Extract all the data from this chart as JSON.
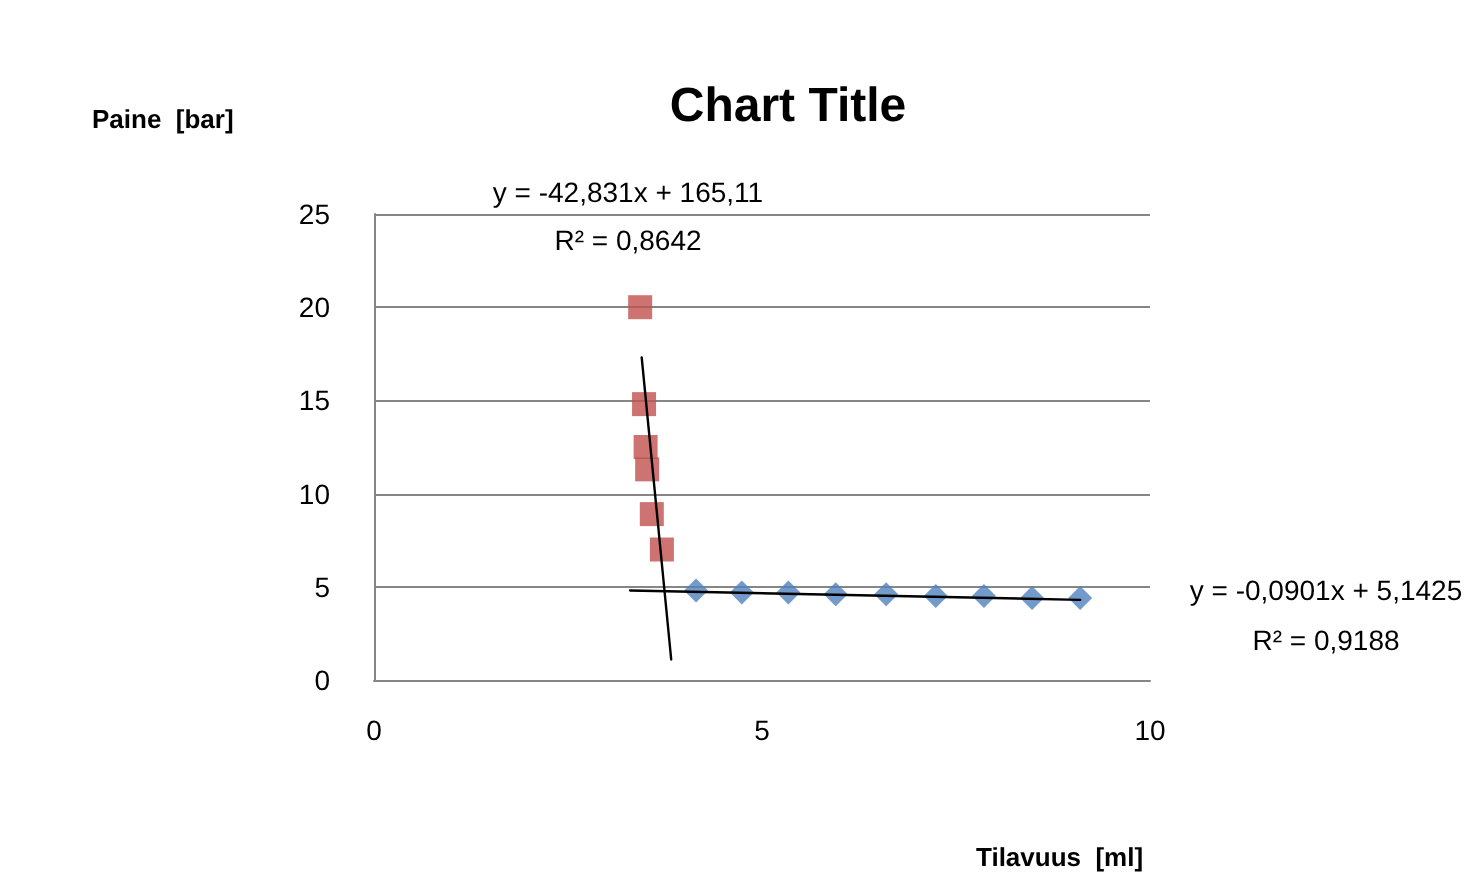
{
  "chart_data": {
    "type": "scatter",
    "title": "Chart Title",
    "xlabel": "Tilavuus  [ml]",
    "ylabel": "Paine  [bar]",
    "xlim": [
      0,
      10
    ],
    "xticks": [
      0,
      5,
      10
    ],
    "ylim": [
      0,
      25
    ],
    "yticks": [
      0,
      5,
      10,
      15,
      20,
      25
    ],
    "grid": "y",
    "annotations": [
      "y = -42,831x + 165,11",
      "R² = 0,8642",
      "y = -0,0901x + 5,1425",
      "R² = 0,9188"
    ],
    "series": [
      {
        "color": "#4f81bd",
        "marker": "diamond",
        "x": [
          4.15,
          4.74,
          5.34,
          5.95,
          6.6,
          7.24,
          7.86,
          8.48,
          9.1
        ],
        "values": [
          4.8,
          4.7,
          4.7,
          4.6,
          4.6,
          4.5,
          4.5,
          4.4,
          4.4
        ]
      },
      {
        "color": "#c0504d",
        "marker": "square",
        "x": [
          3.43,
          3.48,
          3.5,
          3.52,
          3.58,
          3.71
        ],
        "values": [
          20,
          14.8,
          12.5,
          11.3,
          8.9,
          7
        ]
      },
      {
        "type": "line",
        "color": "#000000",
        "marker": "none",
        "line_style": "solid",
        "x": [
          3.45,
          3.83
        ],
        "values": [
          17.3,
          1.1
        ]
      },
      {
        "type": "line",
        "color": "#000000",
        "marker": "none",
        "line_style": "solid",
        "x": [
          3.3,
          9.1
        ],
        "values": [
          4.8,
          4.3
        ]
      }
    ]
  }
}
